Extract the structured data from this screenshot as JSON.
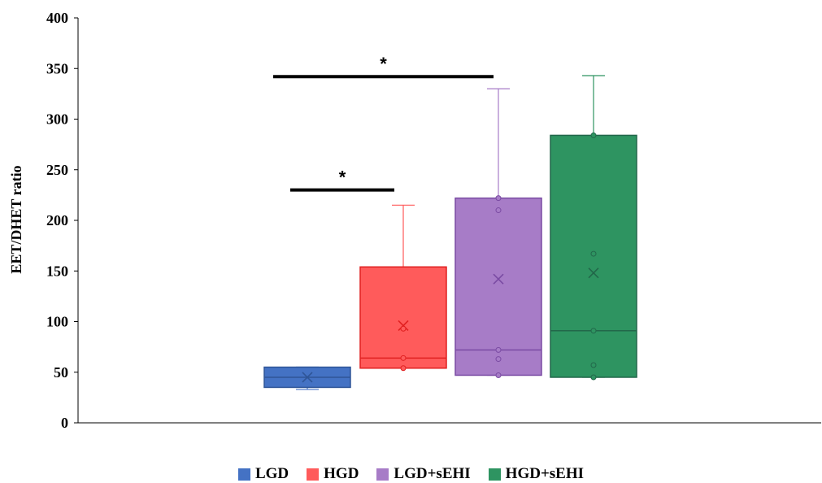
{
  "chart_data": {
    "type": "box",
    "ylabel": "EET/DHET ratio",
    "xlabel": "",
    "ylim": [
      0,
      400
    ],
    "yticks": [
      0,
      50,
      100,
      150,
      200,
      250,
      300,
      350,
      400
    ],
    "gridlines": false,
    "legend_position": "bottom",
    "series": [
      {
        "name": "LGD",
        "color": "#4472C4",
        "min": 33,
        "q1": 35,
        "median": 45,
        "q3": 55,
        "max": 55,
        "mean": 45,
        "points": []
      },
      {
        "name": "HGD",
        "color": "#FF5B5B",
        "min": 54,
        "q1": 54,
        "median": 64,
        "q3": 154,
        "max": 215,
        "mean": 96,
        "points": [
          54,
          64,
          93
        ]
      },
      {
        "name": "LGD+sEHI",
        "color": "#A77CC7",
        "min": 47,
        "q1": 47,
        "median": 72,
        "q3": 222,
        "max": 330,
        "mean": 142,
        "points": [
          47,
          63,
          72,
          210,
          222
        ]
      },
      {
        "name": "HGD+sEHI",
        "color": "#2E9461",
        "min": 45,
        "q1": 45,
        "median": 91,
        "q3": 284,
        "max": 343,
        "mean": 148,
        "points": [
          45,
          57,
          91,
          167,
          284
        ]
      }
    ],
    "annotations": [
      {
        "text": "*",
        "y": 230,
        "from": "LGD",
        "to": "HGD"
      },
      {
        "text": "*",
        "y": 342,
        "from": "LGD",
        "to": "LGD+sEHI"
      }
    ]
  }
}
